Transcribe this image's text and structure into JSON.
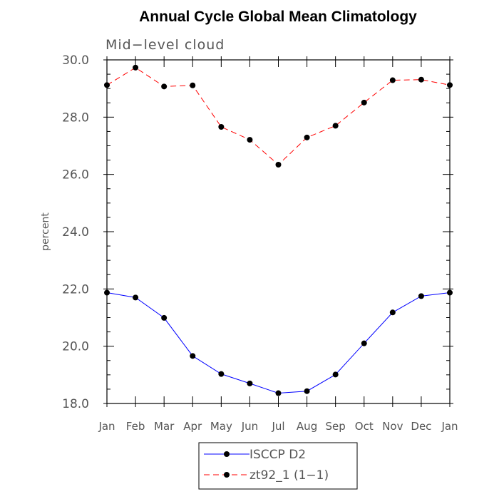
{
  "chart_data": {
    "type": "line",
    "title": "Annual Cycle Global Mean Climatology",
    "subtitle": "Mid−level cloud",
    "xlabel": "",
    "ylabel": "percent",
    "categories": [
      "Jan",
      "Feb",
      "Mar",
      "Apr",
      "May",
      "Jun",
      "Jul",
      "Aug",
      "Sep",
      "Oct",
      "Nov",
      "Dec",
      "Jan"
    ],
    "ylim": [
      18.0,
      30.0
    ],
    "yticks": [
      "18.0",
      "20.0",
      "22.0",
      "24.0",
      "26.0",
      "28.0",
      "30.0"
    ],
    "grid": false,
    "legend_position": "bottom",
    "series": [
      {
        "name": "ISCCP D2",
        "color": "#0000ff",
        "dash": "solid",
        "values": [
          21.87,
          21.7,
          20.99,
          19.66,
          19.03,
          18.7,
          18.36,
          18.43,
          19.01,
          20.1,
          21.18,
          21.75,
          21.87
        ]
      },
      {
        "name": "zt92_1 (1−1)",
        "color": "#ff0000",
        "dash": "dashed",
        "values": [
          29.12,
          29.73,
          29.07,
          29.11,
          27.66,
          27.21,
          26.34,
          27.29,
          27.7,
          28.51,
          29.29,
          29.31,
          29.12
        ]
      }
    ]
  }
}
